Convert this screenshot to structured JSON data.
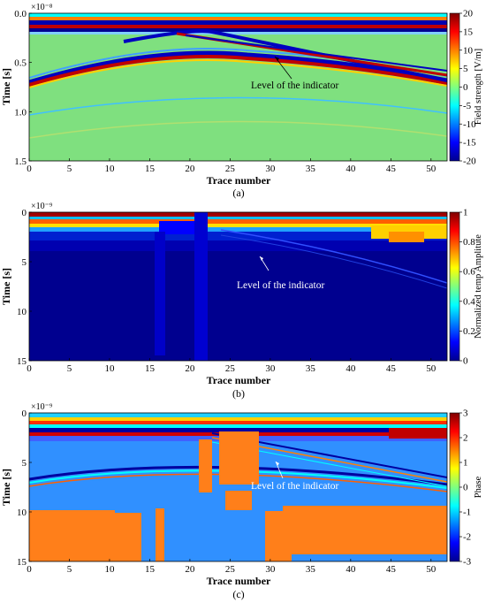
{
  "chart_data": [
    {
      "type": "heatmap",
      "panel_label": "(a)",
      "exponent": "×10⁻⁸",
      "xlabel": "Trace number",
      "ylabel": "Time [s]",
      "xlim": [
        0,
        52
      ],
      "ylim": [
        0,
        1.5
      ],
      "x_ticks": [
        "0",
        "5",
        "10",
        "15",
        "20",
        "25",
        "30",
        "35",
        "40",
        "45",
        "50"
      ],
      "y_ticks": [
        "0.0",
        "0.5",
        "1.0",
        "1.5"
      ],
      "colorbar": {
        "label": "Field strength [V/m]",
        "min": -20,
        "max": 20,
        "ticks": [
          "20",
          "15",
          "10",
          "5",
          "0",
          "-5",
          "-10",
          "-15",
          "-20"
        ]
      },
      "annotation": "Level of the indicator"
    },
    {
      "type": "heatmap",
      "panel_label": "(b)",
      "exponent": "×10⁻⁹",
      "xlabel": "Trace number",
      "ylabel": "Time [s]",
      "xlim": [
        0,
        52
      ],
      "ylim": [
        0,
        15
      ],
      "x_ticks": [
        "0",
        "5",
        "10",
        "15",
        "20",
        "25",
        "30",
        "35",
        "40",
        "45",
        "50"
      ],
      "y_ticks": [
        "0",
        "5",
        "10",
        "15"
      ],
      "colorbar": {
        "label": "Normalized temp Amplitute",
        "min": 0,
        "max": 1,
        "ticks": [
          "1",
          "0.8",
          "0.6",
          "0.4",
          "0.2",
          "0"
        ]
      },
      "annotation": "Level of the indicator"
    },
    {
      "type": "heatmap",
      "panel_label": "(c)",
      "exponent": "×10⁻⁹",
      "xlabel": "Trace number",
      "ylabel": "Time [s]",
      "xlim": [
        0,
        52
      ],
      "ylim": [
        0,
        15
      ],
      "x_ticks": [
        "0",
        "5",
        "10",
        "15",
        "20",
        "25",
        "30",
        "35",
        "40",
        "45",
        "50"
      ],
      "y_ticks": [
        "0",
        "5",
        "10",
        "15"
      ],
      "colorbar": {
        "label": "Phase",
        "min": -3,
        "max": 3,
        "ticks": [
          "3",
          "2",
          "1",
          "0",
          "-1",
          "-2",
          "-3"
        ]
      },
      "annotation": "Level of the indicator"
    }
  ]
}
